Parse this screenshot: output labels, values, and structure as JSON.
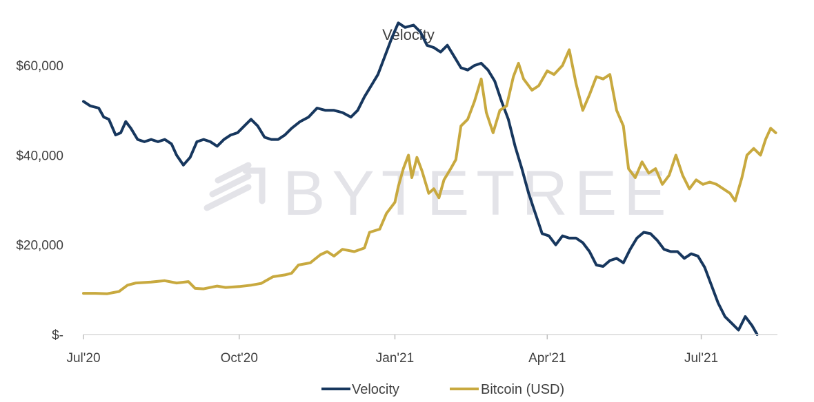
{
  "chart_data": {
    "type": "line",
    "title": "Velocity",
    "watermark": "BYTETREE",
    "xlabel": "",
    "ylabel": "",
    "ylim": [
      0,
      70000
    ],
    "y_ticks": [
      {
        "value": 0,
        "label": "$-"
      },
      {
        "value": 20000,
        "label": "$20,000"
      },
      {
        "value": 40000,
        "label": "$40,000"
      },
      {
        "value": 60000,
        "label": "$60,000"
      }
    ],
    "xlim": [
      "2020-07-01",
      "2021-08-15"
    ],
    "x_ticks": [
      {
        "date": "2020-07-01",
        "label": "Jul'20"
      },
      {
        "date": "2020-10-01",
        "label": "Oct'20"
      },
      {
        "date": "2021-01-01",
        "label": "Jan'21"
      },
      {
        "date": "2021-04-01",
        "label": "Apr'21"
      },
      {
        "date": "2021-07-01",
        "label": "Jul'21"
      }
    ],
    "legend": "bottom",
    "series": [
      {
        "name": "Velocity",
        "color": "#17375e",
        "points": [
          [
            "2020-07-01",
            52000
          ],
          [
            "2020-07-05",
            51000
          ],
          [
            "2020-07-10",
            50500
          ],
          [
            "2020-07-13",
            48500
          ],
          [
            "2020-07-16",
            48000
          ],
          [
            "2020-07-20",
            44500
          ],
          [
            "2020-07-23",
            45000
          ],
          [
            "2020-07-26",
            47500
          ],
          [
            "2020-07-29",
            46000
          ],
          [
            "2020-08-02",
            43500
          ],
          [
            "2020-08-06",
            43000
          ],
          [
            "2020-08-10",
            43500
          ],
          [
            "2020-08-14",
            43000
          ],
          [
            "2020-08-18",
            43500
          ],
          [
            "2020-08-22",
            42500
          ],
          [
            "2020-08-25",
            40000
          ],
          [
            "2020-08-29",
            37800
          ],
          [
            "2020-09-02",
            39500
          ],
          [
            "2020-09-06",
            43000
          ],
          [
            "2020-09-10",
            43500
          ],
          [
            "2020-09-14",
            43000
          ],
          [
            "2020-09-18",
            42000
          ],
          [
            "2020-09-22",
            43500
          ],
          [
            "2020-09-26",
            44500
          ],
          [
            "2020-09-30",
            45000
          ],
          [
            "2020-10-04",
            46500
          ],
          [
            "2020-10-08",
            48000
          ],
          [
            "2020-10-12",
            46500
          ],
          [
            "2020-10-16",
            44000
          ],
          [
            "2020-10-20",
            43500
          ],
          [
            "2020-10-24",
            43500
          ],
          [
            "2020-10-28",
            44500
          ],
          [
            "2020-11-01",
            46000
          ],
          [
            "2020-11-06",
            47500
          ],
          [
            "2020-11-11",
            48500
          ],
          [
            "2020-11-16",
            50500
          ],
          [
            "2020-11-21",
            50000
          ],
          [
            "2020-11-26",
            50000
          ],
          [
            "2020-12-01",
            49500
          ],
          [
            "2020-12-06",
            48500
          ],
          [
            "2020-12-10",
            50000
          ],
          [
            "2020-12-14",
            53000
          ],
          [
            "2020-12-18",
            55500
          ],
          [
            "2020-12-22",
            58000
          ],
          [
            "2020-12-26",
            62000
          ],
          [
            "2020-12-30",
            66000
          ],
          [
            "2021-01-03",
            69500
          ],
          [
            "2021-01-07",
            68500
          ],
          [
            "2021-01-12",
            69000
          ],
          [
            "2021-01-16",
            67500
          ],
          [
            "2021-01-20",
            64500
          ],
          [
            "2021-01-24",
            64000
          ],
          [
            "2021-01-28",
            63000
          ],
          [
            "2021-02-01",
            64500
          ],
          [
            "2021-02-05",
            62000
          ],
          [
            "2021-02-09",
            59500
          ],
          [
            "2021-02-13",
            59000
          ],
          [
            "2021-02-17",
            60000
          ],
          [
            "2021-02-21",
            60500
          ],
          [
            "2021-02-25",
            59000
          ],
          [
            "2021-03-01",
            56500
          ],
          [
            "2021-03-05",
            52000
          ],
          [
            "2021-03-09",
            48000
          ],
          [
            "2021-03-13",
            42000
          ],
          [
            "2021-03-17",
            37000
          ],
          [
            "2021-03-21",
            31500
          ],
          [
            "2021-03-25",
            27000
          ],
          [
            "2021-03-29",
            22500
          ],
          [
            "2021-04-02",
            22000
          ],
          [
            "2021-04-06",
            20000
          ],
          [
            "2021-04-10",
            22000
          ],
          [
            "2021-04-14",
            21500
          ],
          [
            "2021-04-18",
            21500
          ],
          [
            "2021-04-22",
            20500
          ],
          [
            "2021-04-26",
            18500
          ],
          [
            "2021-04-30",
            15500
          ],
          [
            "2021-05-04",
            15200
          ],
          [
            "2021-05-08",
            16500
          ],
          [
            "2021-05-12",
            17000
          ],
          [
            "2021-05-16",
            16000
          ],
          [
            "2021-05-20",
            19000
          ],
          [
            "2021-05-24",
            21500
          ],
          [
            "2021-05-28",
            22800
          ],
          [
            "2021-06-01",
            22500
          ],
          [
            "2021-06-05",
            21000
          ],
          [
            "2021-06-09",
            19000
          ],
          [
            "2021-06-13",
            18500
          ],
          [
            "2021-06-17",
            18500
          ],
          [
            "2021-06-21",
            17000
          ],
          [
            "2021-06-25",
            18000
          ],
          [
            "2021-06-29",
            17500
          ],
          [
            "2021-07-03",
            15000
          ],
          [
            "2021-07-07",
            11000
          ],
          [
            "2021-07-11",
            7000
          ],
          [
            "2021-07-15",
            4000
          ],
          [
            "2021-07-19",
            2500
          ],
          [
            "2021-07-23",
            1000
          ],
          [
            "2021-07-27",
            4000
          ],
          [
            "2021-07-31",
            2000
          ],
          [
            "2021-08-03",
            0
          ]
        ]
      },
      {
        "name": "Bitcoin (USD)",
        "color": "#c8a93f",
        "points": [
          [
            "2020-07-01",
            9200
          ],
          [
            "2020-07-08",
            9200
          ],
          [
            "2020-07-15",
            9100
          ],
          [
            "2020-07-22",
            9600
          ],
          [
            "2020-07-27",
            11000
          ],
          [
            "2020-08-01",
            11500
          ],
          [
            "2020-08-10",
            11700
          ],
          [
            "2020-08-18",
            12000
          ],
          [
            "2020-08-25",
            11500
          ],
          [
            "2020-09-01",
            11800
          ],
          [
            "2020-09-05",
            10300
          ],
          [
            "2020-09-10",
            10200
          ],
          [
            "2020-09-18",
            10800
          ],
          [
            "2020-09-23",
            10500
          ],
          [
            "2020-10-01",
            10700
          ],
          [
            "2020-10-08",
            11000
          ],
          [
            "2020-10-14",
            11400
          ],
          [
            "2020-10-21",
            12900
          ],
          [
            "2020-10-28",
            13300
          ],
          [
            "2020-11-01",
            13700
          ],
          [
            "2020-11-05",
            15500
          ],
          [
            "2020-11-12",
            16000
          ],
          [
            "2020-11-18",
            17800
          ],
          [
            "2020-11-22",
            18500
          ],
          [
            "2020-11-26",
            17500
          ],
          [
            "2020-12-01",
            19000
          ],
          [
            "2020-12-08",
            18500
          ],
          [
            "2020-12-14",
            19300
          ],
          [
            "2020-12-17",
            22800
          ],
          [
            "2020-12-23",
            23500
          ],
          [
            "2020-12-27",
            27000
          ],
          [
            "2021-01-01",
            29500
          ],
          [
            "2021-01-03",
            33000
          ],
          [
            "2021-01-06",
            37000
          ],
          [
            "2021-01-09",
            40000
          ],
          [
            "2021-01-11",
            35000
          ],
          [
            "2021-01-14",
            39500
          ],
          [
            "2021-01-17",
            36500
          ],
          [
            "2021-01-21",
            31500
          ],
          [
            "2021-01-24",
            32500
          ],
          [
            "2021-01-27",
            30500
          ],
          [
            "2021-01-30",
            34500
          ],
          [
            "2021-02-03",
            37000
          ],
          [
            "2021-02-06",
            39000
          ],
          [
            "2021-02-09",
            46500
          ],
          [
            "2021-02-13",
            48000
          ],
          [
            "2021-02-17",
            52000
          ],
          [
            "2021-02-21",
            57000
          ],
          [
            "2021-02-24",
            49500
          ],
          [
            "2021-02-28",
            45000
          ],
          [
            "2021-03-04",
            50000
          ],
          [
            "2021-03-08",
            51000
          ],
          [
            "2021-03-12",
            57500
          ],
          [
            "2021-03-15",
            60500
          ],
          [
            "2021-03-18",
            57000
          ],
          [
            "2021-03-23",
            54500
          ],
          [
            "2021-03-27",
            55500
          ],
          [
            "2021-04-01",
            58800
          ],
          [
            "2021-04-05",
            58000
          ],
          [
            "2021-04-10",
            60000
          ],
          [
            "2021-04-14",
            63500
          ],
          [
            "2021-04-18",
            56000
          ],
          [
            "2021-04-22",
            50000
          ],
          [
            "2021-04-26",
            53500
          ],
          [
            "2021-04-30",
            57500
          ],
          [
            "2021-05-04",
            57000
          ],
          [
            "2021-05-08",
            58000
          ],
          [
            "2021-05-12",
            50000
          ],
          [
            "2021-05-16",
            46500
          ],
          [
            "2021-05-19",
            37000
          ],
          [
            "2021-05-23",
            35000
          ],
          [
            "2021-05-27",
            38500
          ],
          [
            "2021-05-31",
            36000
          ],
          [
            "2021-06-04",
            37000
          ],
          [
            "2021-06-08",
            33500
          ],
          [
            "2021-06-12",
            35500
          ],
          [
            "2021-06-16",
            40000
          ],
          [
            "2021-06-20",
            35500
          ],
          [
            "2021-06-24",
            32500
          ],
          [
            "2021-06-28",
            34500
          ],
          [
            "2021-07-02",
            33500
          ],
          [
            "2021-07-06",
            34000
          ],
          [
            "2021-07-10",
            33500
          ],
          [
            "2021-07-14",
            32500
          ],
          [
            "2021-07-18",
            31500
          ],
          [
            "2021-07-21",
            29800
          ],
          [
            "2021-07-25",
            35000
          ],
          [
            "2021-07-28",
            40000
          ],
          [
            "2021-08-01",
            41500
          ],
          [
            "2021-08-05",
            40000
          ],
          [
            "2021-08-08",
            43500
          ],
          [
            "2021-08-11",
            46000
          ],
          [
            "2021-08-14",
            45000
          ]
        ]
      }
    ]
  }
}
